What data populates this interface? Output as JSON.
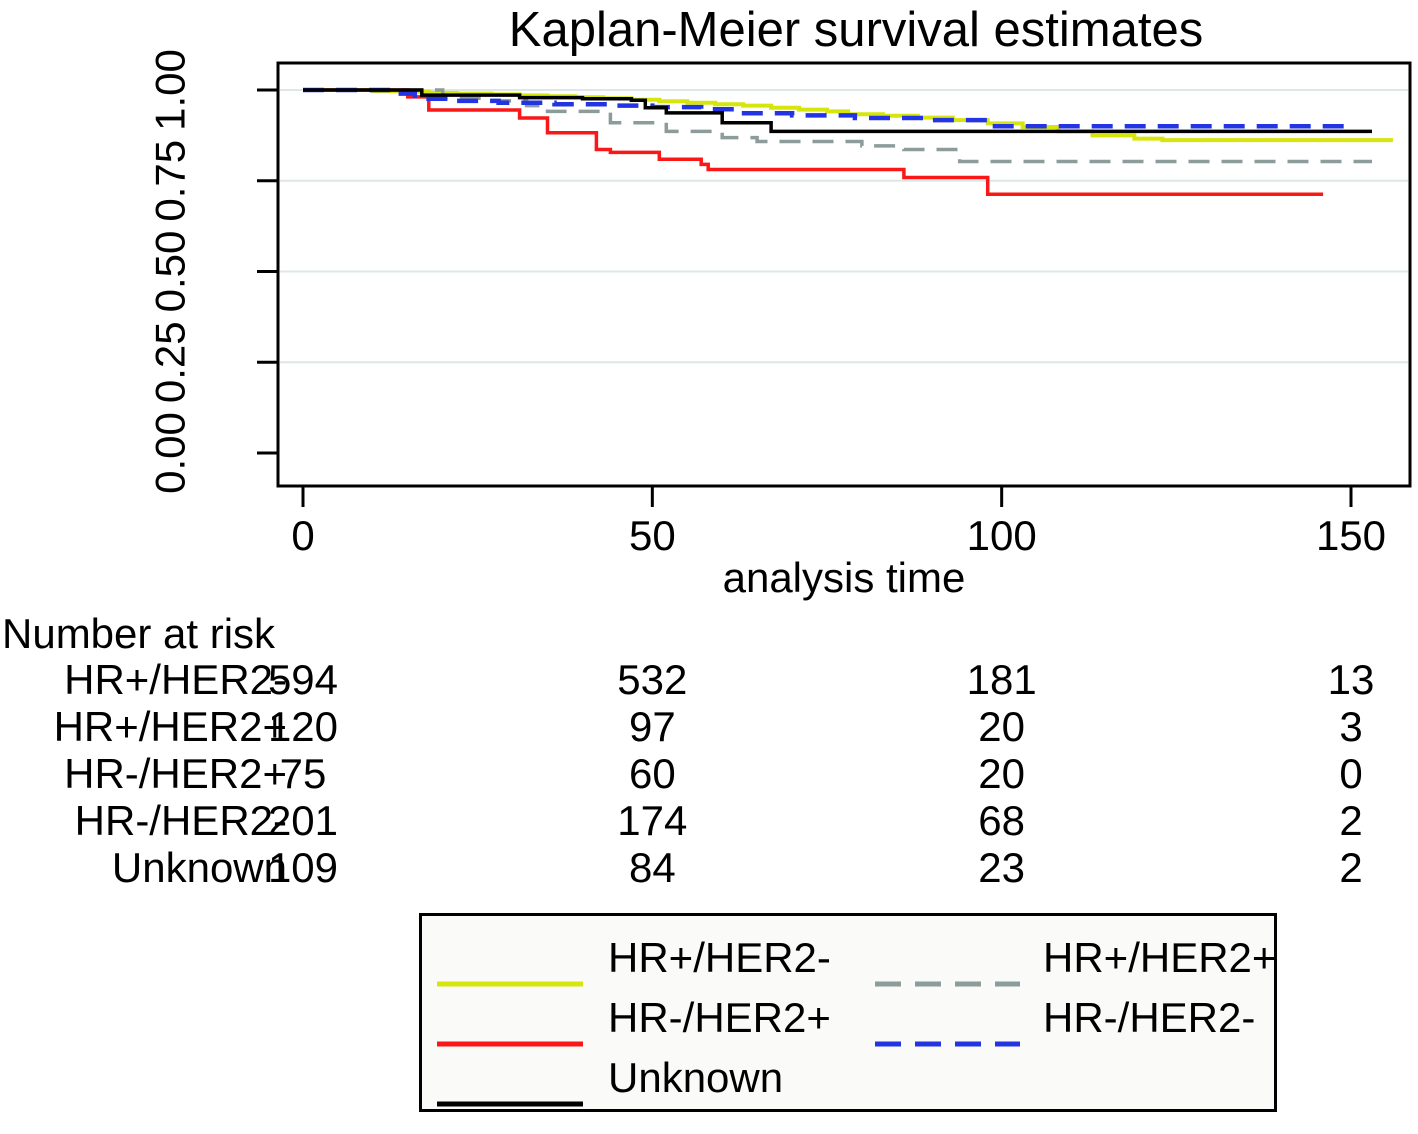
{
  "title": "Kaplan-Meier survival estimates",
  "colors": {
    "axis": "#000000",
    "grid": "#dde8e6",
    "background": "#ffffff",
    "legend_background": "#fafaf8"
  },
  "chart_data": {
    "type": "line",
    "subtype": "kaplan-meier-step",
    "title": "Kaplan-Meier survival estimates",
    "xlabel": "analysis time",
    "ylabel": "",
    "xlim": [
      0,
      158
    ],
    "ylim": [
      0.0,
      1.0
    ],
    "x_ticks": [
      "0",
      "50",
      "100",
      "150"
    ],
    "y_ticks": [
      "0.00",
      "0.25",
      "0.50",
      "0.75",
      "1.00"
    ],
    "grid": "horizontal-light",
    "legend_position": "bottom-box",
    "series": [
      {
        "name": "HR+/HER2-",
        "color": "#d6e60c",
        "dash": "solid",
        "width": 4,
        "points": [
          [
            0,
            1
          ],
          [
            10,
            0.997
          ],
          [
            14,
            0.995
          ],
          [
            18,
            0.992
          ],
          [
            22,
            0.99
          ],
          [
            27,
            0.988
          ],
          [
            31,
            0.985
          ],
          [
            35,
            0.983
          ],
          [
            39,
            0.98
          ],
          [
            43,
            0.977
          ],
          [
            47,
            0.973
          ],
          [
            51,
            0.969
          ],
          [
            55,
            0.965
          ],
          [
            59,
            0.961
          ],
          [
            63,
            0.957
          ],
          [
            67,
            0.951
          ],
          [
            71,
            0.946
          ],
          [
            75,
            0.941
          ],
          [
            78,
            0.933
          ],
          [
            83,
            0.929
          ],
          [
            88,
            0.924
          ],
          [
            93,
            0.917
          ],
          [
            98,
            0.908
          ],
          [
            103,
            0.898
          ],
          [
            108,
            0.886
          ],
          [
            113,
            0.875
          ],
          [
            119,
            0.866
          ],
          [
            123,
            0.862
          ],
          [
            156,
            0.862
          ]
        ]
      },
      {
        "name": "HR+/HER2+",
        "color": "#8c9c9a",
        "dash": "dashed",
        "width": 3.5,
        "points": [
          [
            0,
            1
          ],
          [
            20,
            0.977
          ],
          [
            26,
            0.97
          ],
          [
            32,
            0.957
          ],
          [
            35,
            0.941
          ],
          [
            44,
            0.91
          ],
          [
            52,
            0.886
          ],
          [
            60,
            0.869
          ],
          [
            65,
            0.858
          ],
          [
            80,
            0.846
          ],
          [
            86,
            0.836
          ],
          [
            94,
            0.803
          ],
          [
            153,
            0.803
          ]
        ]
      },
      {
        "name": "HR-/HER2+",
        "color": "#fa1717",
        "dash": "solid",
        "width": 3.5,
        "points": [
          [
            0,
            1
          ],
          [
            15,
            0.981
          ],
          [
            18,
            0.945
          ],
          [
            31,
            0.923
          ],
          [
            35,
            0.882
          ],
          [
            42,
            0.836
          ],
          [
            44,
            0.828
          ],
          [
            51,
            0.809
          ],
          [
            57,
            0.795
          ],
          [
            58,
            0.781
          ],
          [
            86,
            0.759
          ],
          [
            98,
            0.713
          ],
          [
            146,
            0.713
          ]
        ]
      },
      {
        "name": "HR-/HER2-",
        "color": "#2335e2",
        "dash": "dashed",
        "width": 4.5,
        "points": [
          [
            0,
            1
          ],
          [
            14,
            0.99
          ],
          [
            16,
            0.976
          ],
          [
            22,
            0.97
          ],
          [
            28,
            0.965
          ],
          [
            36,
            0.961
          ],
          [
            44,
            0.957
          ],
          [
            50,
            0.953
          ],
          [
            57,
            0.947
          ],
          [
            62,
            0.936
          ],
          [
            70,
            0.93
          ],
          [
            79,
            0.923
          ],
          [
            89,
            0.917
          ],
          [
            98,
            0.9
          ],
          [
            150,
            0.9
          ]
        ]
      },
      {
        "name": "Unknown",
        "color": "#000000",
        "dash": "solid",
        "width": 3.5,
        "points": [
          [
            0,
            1
          ],
          [
            17,
            0.986
          ],
          [
            31,
            0.979
          ],
          [
            40,
            0.976
          ],
          [
            47,
            0.972
          ],
          [
            49,
            0.951
          ],
          [
            52,
            0.937
          ],
          [
            60,
            0.91
          ],
          [
            67,
            0.886
          ],
          [
            153,
            0.886
          ]
        ]
      }
    ]
  },
  "risk_table": {
    "header": "Number at risk",
    "time_points": [
      "0",
      "50",
      "100",
      "150"
    ],
    "rows": [
      {
        "label": "HR+/HER2-",
        "values": [
          "594",
          "532",
          "181",
          "13"
        ]
      },
      {
        "label": "HR+/HER2+",
        "values": [
          "120",
          "97",
          "20",
          "3"
        ]
      },
      {
        "label": "HR-/HER2+",
        "values": [
          "75",
          "60",
          "20",
          "0"
        ]
      },
      {
        "label": "HR-/HER2-",
        "values": [
          "201",
          "174",
          "68",
          "2"
        ]
      },
      {
        "label": "Unknown",
        "values": [
          "109",
          "84",
          "23",
          "2"
        ]
      }
    ]
  },
  "legend": {
    "rows": [
      [
        "HR+/HER2-",
        "HR+/HER2+"
      ],
      [
        "HR-/HER2+",
        "HR-/HER2-"
      ],
      [
        "Unknown"
      ]
    ]
  }
}
